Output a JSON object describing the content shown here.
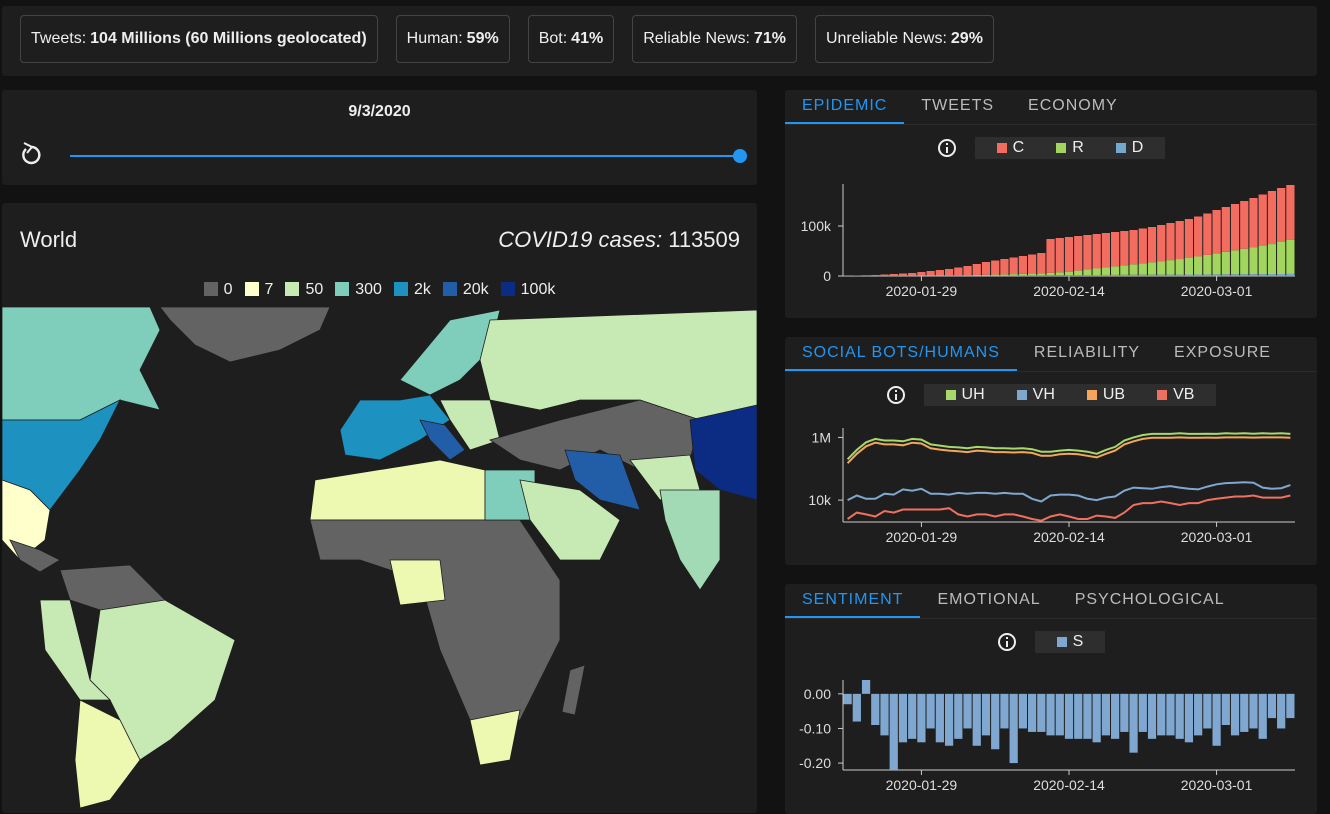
{
  "stats": [
    {
      "label": "Tweets:",
      "value": "104 Millions (60 Millions geolocated)"
    },
    {
      "label": "Human:",
      "value": "59%"
    },
    {
      "label": "Bot:",
      "value": "41%"
    },
    {
      "label": "Reliable News:",
      "value": "71%"
    },
    {
      "label": "Unreliable News:",
      "value": "29%"
    }
  ],
  "slider": {
    "date": "9/3/2020"
  },
  "map": {
    "title": "World",
    "metric_label": "COVID19 cases:",
    "metric_value": 113509,
    "legend": [
      {
        "label": "0",
        "color": "#636363"
      },
      {
        "label": "7",
        "color": "#ffffcc"
      },
      {
        "label": "50",
        "color": "#c7e9b4"
      },
      {
        "label": "300",
        "color": "#7fcdbb"
      },
      {
        "label": "2k",
        "color": "#1d91c0"
      },
      {
        "label": "20k",
        "color": "#225ea8"
      },
      {
        "label": "100k",
        "color": "#0c2c84"
      }
    ]
  },
  "panels": [
    {
      "tabs": [
        "EPIDEMIC",
        "TWEETS",
        "ECONOMY"
      ],
      "active_tab": 0,
      "chart": {
        "type": "bar",
        "stacked": true,
        "categories": [
          null,
          null,
          null,
          null,
          null,
          null,
          null,
          null,
          "2020-01-29",
          null,
          null,
          null,
          null,
          null,
          null,
          null,
          null,
          null,
          null,
          null,
          null,
          null,
          null,
          null,
          "2020-02-14",
          null,
          null,
          null,
          null,
          null,
          null,
          null,
          null,
          null,
          null,
          null,
          null,
          null,
          null,
          null,
          "2020-03-01",
          null,
          null,
          null,
          null,
          null,
          null,
          null,
          null
        ],
        "series": [
          {
            "name": "C",
            "color": "#f36c60",
            "values": [
              600,
              1000,
              1500,
              2000,
              2900,
              3800,
              4700,
              5500,
              7300,
              9100,
              11000,
              12800,
              15500,
              18300,
              21900,
              25500,
              28200,
              30700,
              33200,
              35700,
              38200,
              40700,
              67500,
              68400,
              69300,
              69200,
              69100,
              69000,
              68900,
              68800,
              68700,
              68600,
              69500,
              70400,
              72300,
              74200,
              76100,
              78000,
              79900,
              82800,
              86700,
              89600,
              92500,
              95400,
              98300,
              102200,
              106100,
              108000,
              109900
            ]
          },
          {
            "name": "R",
            "color": "#a1d55d",
            "values": [
              0,
              0,
              0,
              0,
              100,
              100,
              200,
              300,
              500,
              600,
              700,
              800,
              1000,
              1200,
              1500,
              1800,
              2000,
              2400,
              2800,
              3200,
              3600,
              4000,
              5000,
              6000,
              7000,
              9000,
              11000,
              13000,
              15000,
              17000,
              19000,
              21000,
              23000,
              25000,
              27000,
              29000,
              31000,
              33000,
              36000,
              39000,
              42000,
              45000,
              48000,
              51000,
              54000,
              57000,
              60000,
              64000,
              68000
            ]
          },
          {
            "name": "D",
            "color": "#74a9cf",
            "values": [
              0,
              0,
              0,
              0,
              0,
              100,
              100,
              200,
              200,
              300,
              300,
              400,
              500,
              500,
              600,
              700,
              800,
              900,
              1000,
              1100,
              1200,
              1300,
              1500,
              1600,
              1700,
              1800,
              1900,
              2000,
              2100,
              2200,
              2300,
              2400,
              2500,
              2600,
              2700,
              2800,
              2900,
              3000,
              3100,
              3200,
              3300,
              3400,
              3500,
              3600,
              3700,
              3800,
              3900,
              4000,
              4100
            ]
          }
        ],
        "ylim": [
          0,
          184000
        ],
        "yticks": [
          0,
          {
            "value": 100000,
            "label": "100k"
          }
        ]
      }
    },
    {
      "tabs": [
        "SOCIAL BOTS/HUMANS",
        "RELIABILITY",
        "EXPOSURE"
      ],
      "active_tab": 0,
      "chart": {
        "type": "line",
        "log_scale": true,
        "categories": [
          null,
          null,
          null,
          null,
          null,
          null,
          null,
          null,
          "2020-01-29",
          null,
          null,
          null,
          null,
          null,
          null,
          null,
          null,
          null,
          null,
          null,
          null,
          null,
          null,
          null,
          "2020-02-14",
          null,
          null,
          null,
          null,
          null,
          null,
          null,
          null,
          null,
          null,
          null,
          null,
          null,
          null,
          null,
          "2020-03-01",
          null,
          null,
          null,
          null,
          null,
          null,
          null,
          null
        ],
        "series": [
          {
            "name": "UH",
            "color": "#a6d96a",
            "values": [
              200000,
              400000,
              700000,
              900000,
              800000,
              800000,
              750000,
              900000,
              850000,
              600000,
              550000,
              500000,
              480000,
              450000,
              500000,
              480000,
              450000,
              450000,
              440000,
              450000,
              420000,
              350000,
              350000,
              380000,
              400000,
              380000,
              350000,
              300000,
              400000,
              500000,
              800000,
              1000000,
              1200000,
              1300000,
              1300000,
              1300000,
              1350000,
              1300000,
              1300000,
              1320000,
              1300000,
              1350000,
              1330000,
              1350000,
              1320000,
              1350000,
              1330000,
              1350000,
              1300000
            ]
          },
          {
            "name": "VH",
            "color": "#7fa7cf",
            "values": [
              10000,
              14000,
              11000,
              11000,
              16000,
              15000,
              22000,
              20000,
              23000,
              16000,
              16000,
              15000,
              17000,
              16000,
              17000,
              17000,
              16000,
              17000,
              16000,
              16000,
              11000,
              9000,
              14000,
              15000,
              15000,
              14000,
              11000,
              10000,
              12000,
              13000,
              20000,
              25000,
              24000,
              23000,
              26000,
              28000,
              25000,
              23000,
              22000,
              27000,
              32000,
              35000,
              36000,
              37000,
              36000,
              25000,
              23000,
              24000,
              30000
            ]
          },
          {
            "name": "UB",
            "color": "#f5a65b",
            "values": [
              150000,
              300000,
              520000,
              680000,
              600000,
              600000,
              560000,
              680000,
              640000,
              450000,
              410000,
              380000,
              360000,
              340000,
              380000,
              360000,
              340000,
              340000,
              330000,
              340000,
              320000,
              260000,
              260000,
              290000,
              300000,
              290000,
              260000,
              230000,
              300000,
              380000,
              600000,
              750000,
              900000,
              980000,
              980000,
              980000,
              1000000,
              980000,
              980000,
              990000,
              980000,
              1000000,
              1000000,
              1000000,
              990000,
              1000000,
              1000000,
              1000000,
              980000
            ]
          },
          {
            "name": "VB",
            "color": "#f0705f",
            "values": [
              2500,
              4000,
              3500,
              3000,
              4500,
              4000,
              5000,
              5000,
              5000,
              5000,
              5000,
              5500,
              3500,
              3000,
              3500,
              3500,
              3000,
              3500,
              3500,
              3000,
              2500,
              2200,
              3000,
              3500,
              3000,
              2500,
              2500,
              3200,
              3000,
              2700,
              4000,
              7000,
              8000,
              8000,
              9000,
              8000,
              7000,
              8000,
              8000,
              10000,
              11000,
              12000,
              13000,
              13000,
              14000,
              12000,
              12000,
              12000,
              14000
            ]
          }
        ],
        "ylim": [
          2000,
          2000000
        ],
        "yticks": [
          {
            "value": 10000,
            "label": "10k"
          },
          {
            "value": 1000000,
            "label": "1M"
          }
        ]
      }
    },
    {
      "tabs": [
        "SENTIMENT",
        "EMOTIONAL",
        "PSYCHOLOGICAL"
      ],
      "active_tab": 0,
      "chart": {
        "type": "bar",
        "categories": [
          null,
          null,
          null,
          null,
          null,
          null,
          null,
          null,
          "2020-01-29",
          null,
          null,
          null,
          null,
          null,
          null,
          null,
          null,
          null,
          null,
          null,
          null,
          null,
          null,
          null,
          "2020-02-14",
          null,
          null,
          null,
          null,
          null,
          null,
          null,
          null,
          null,
          null,
          null,
          null,
          null,
          null,
          null,
          "2020-03-01",
          null,
          null,
          null,
          null,
          null,
          null,
          null,
          null
        ],
        "series": [
          {
            "name": "S",
            "color": "#7fa7cf",
            "values": [
              -0.03,
              -0.08,
              0.04,
              -0.09,
              -0.12,
              -0.22,
              -0.14,
              -0.13,
              -0.14,
              -0.1,
              -0.14,
              -0.15,
              -0.13,
              -0.1,
              -0.15,
              -0.12,
              -0.16,
              -0.1,
              -0.2,
              -0.1,
              -0.11,
              -0.11,
              -0.12,
              -0.12,
              -0.13,
              -0.13,
              -0.13,
              -0.14,
              -0.12,
              -0.13,
              -0.11,
              -0.17,
              -0.11,
              -0.13,
              -0.12,
              -0.12,
              -0.13,
              -0.14,
              -0.12,
              -0.1,
              -0.15,
              -0.09,
              -0.12,
              -0.11,
              -0.1,
              -0.13,
              -0.07,
              -0.1,
              -0.07
            ]
          }
        ],
        "ylim": [
          -0.22,
          0.04
        ],
        "yticks": [
          {
            "value": 0,
            "label": "0.00"
          },
          {
            "value": -0.1,
            "label": "-0.10"
          },
          {
            "value": -0.2,
            "label": "-0.20"
          }
        ]
      }
    }
  ]
}
